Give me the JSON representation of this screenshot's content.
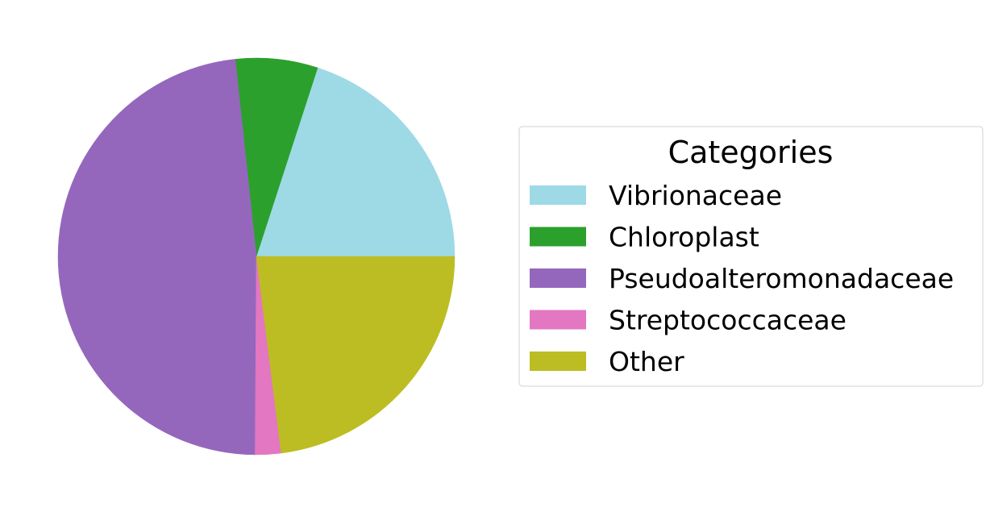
{
  "chart_data": {
    "type": "pie",
    "title": "",
    "categories": [
      "Vibrionaceae",
      "Chloroplast",
      "Pseudoalteromonadaceae",
      "Streptococcaceae",
      "Other"
    ],
    "values": [
      20.0,
      6.7,
      48.2,
      2.1,
      23.0
    ],
    "colors": [
      "#9edae5",
      "#2ca02c",
      "#9467bd",
      "#e377c2",
      "#bcbd22"
    ],
    "start_angle_deg": 0,
    "direction": "counterclockwise",
    "legend": {
      "title": "Categories",
      "placement": "right",
      "entries": [
        "Vibrionaceae",
        "Chloroplast",
        "Pseudoalteromonadaceae",
        "Streptococcaceae",
        "Other"
      ]
    }
  }
}
